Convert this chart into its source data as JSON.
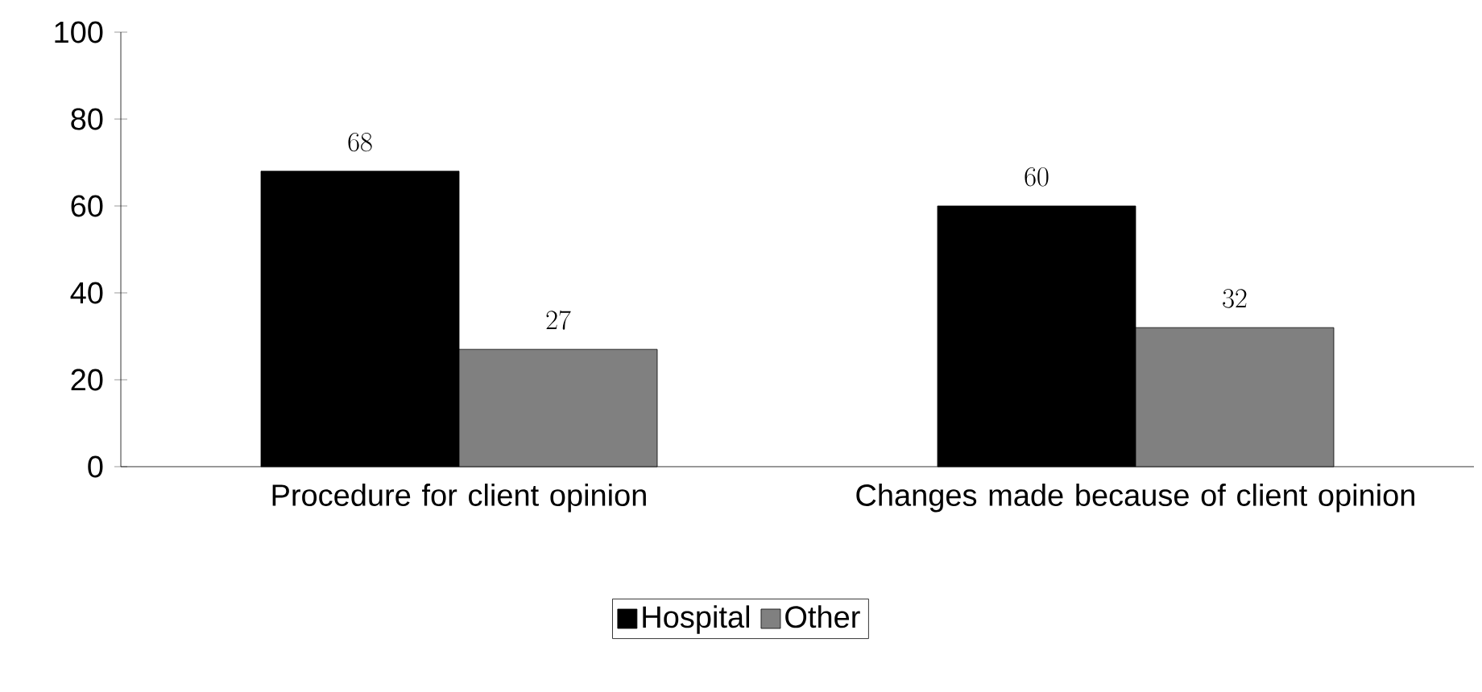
{
  "chart_data": {
    "type": "bar",
    "categories": [
      "Procedure for client opinion",
      "Changes made because of client opinion"
    ],
    "series": [
      {
        "name": "Hospital",
        "color": "#000000",
        "values": [
          68,
          60
        ]
      },
      {
        "name": "Other",
        "color": "#808080",
        "values": [
          27,
          32
        ]
      }
    ],
    "ylim": [
      0,
      100
    ],
    "yticks": [
      0,
      20,
      40,
      60,
      80,
      100
    ],
    "data_labels": true,
    "legend": "bottom"
  }
}
